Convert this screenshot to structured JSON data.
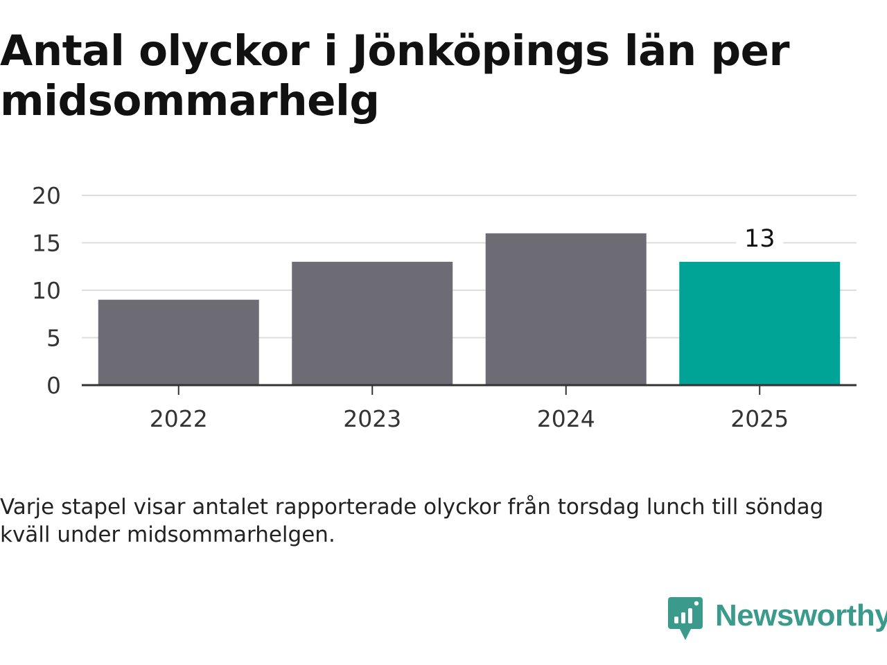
{
  "title": "Antal olyckor i Jönköpings län per midsommarhelg",
  "caption": "Varje stapel visar antalet rapporterade olyckor från torsdag lunch till söndag kväll under midsommarhelgen.",
  "logo": {
    "text": "Newsworthy",
    "icon": "bar-chart-speech-bubble-icon",
    "color": "#3a9a8c"
  },
  "chart_data": {
    "type": "bar",
    "title": "Antal olyckor i Jönköpings län per midsommarhelg",
    "xlabel": "",
    "ylabel": "",
    "categories": [
      "2022",
      "2023",
      "2024",
      "2025"
    ],
    "values": [
      9,
      13,
      16,
      13
    ],
    "ylim": [
      0,
      20
    ],
    "yticks": [
      0,
      5,
      10,
      15,
      20
    ],
    "grid": true,
    "highlight_index": 3,
    "data_labels": [
      null,
      null,
      null,
      "13"
    ],
    "colors": {
      "default": "#6d6c74",
      "highlight": "#00a497",
      "grid": "#dddddd",
      "axis": "#333333",
      "text": "#333333"
    }
  }
}
